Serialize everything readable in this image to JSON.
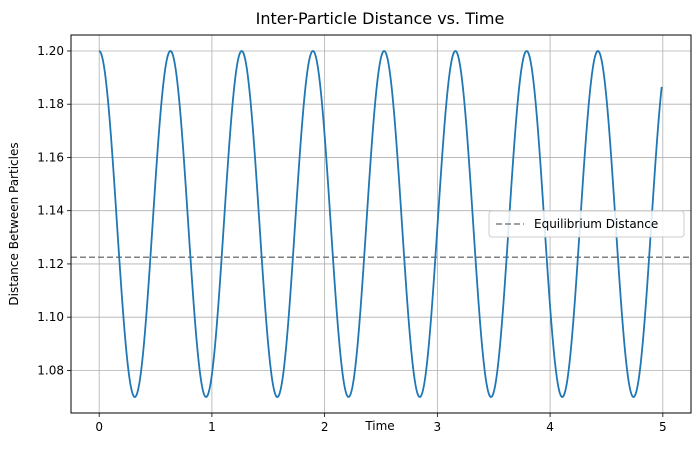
{
  "chart_data": {
    "type": "line",
    "title": "Inter-Particle Distance vs. Time",
    "xlabel": "Time",
    "ylabel": "Distance Between Particles",
    "xlim": [
      -0.25,
      5.25
    ],
    "ylim": [
      1.064,
      1.206
    ],
    "x_ticks": [
      0,
      1,
      2,
      3,
      4,
      5
    ],
    "x_tick_labels": [
      "0",
      "1",
      "2",
      "3",
      "4",
      "5"
    ],
    "y_ticks": [
      1.08,
      1.1,
      1.12,
      1.14,
      1.16,
      1.18,
      1.2
    ],
    "y_tick_labels": [
      "1.08",
      "1.10",
      "1.12",
      "1.14",
      "1.16",
      "1.18",
      "1.20"
    ],
    "grid": true,
    "legend_position": "center-right",
    "series": [
      {
        "kind": "oscillation",
        "color": "#1f77b4",
        "x_range": [
          0,
          4.99
        ],
        "max": 1.2,
        "min": 1.07,
        "period": 0.632,
        "starts_at": "max"
      },
      {
        "name": "Equilibrium Distance",
        "kind": "horizontal_line",
        "y": 1.1225,
        "color": "#808080",
        "linestyle": "dashed"
      }
    ]
  }
}
